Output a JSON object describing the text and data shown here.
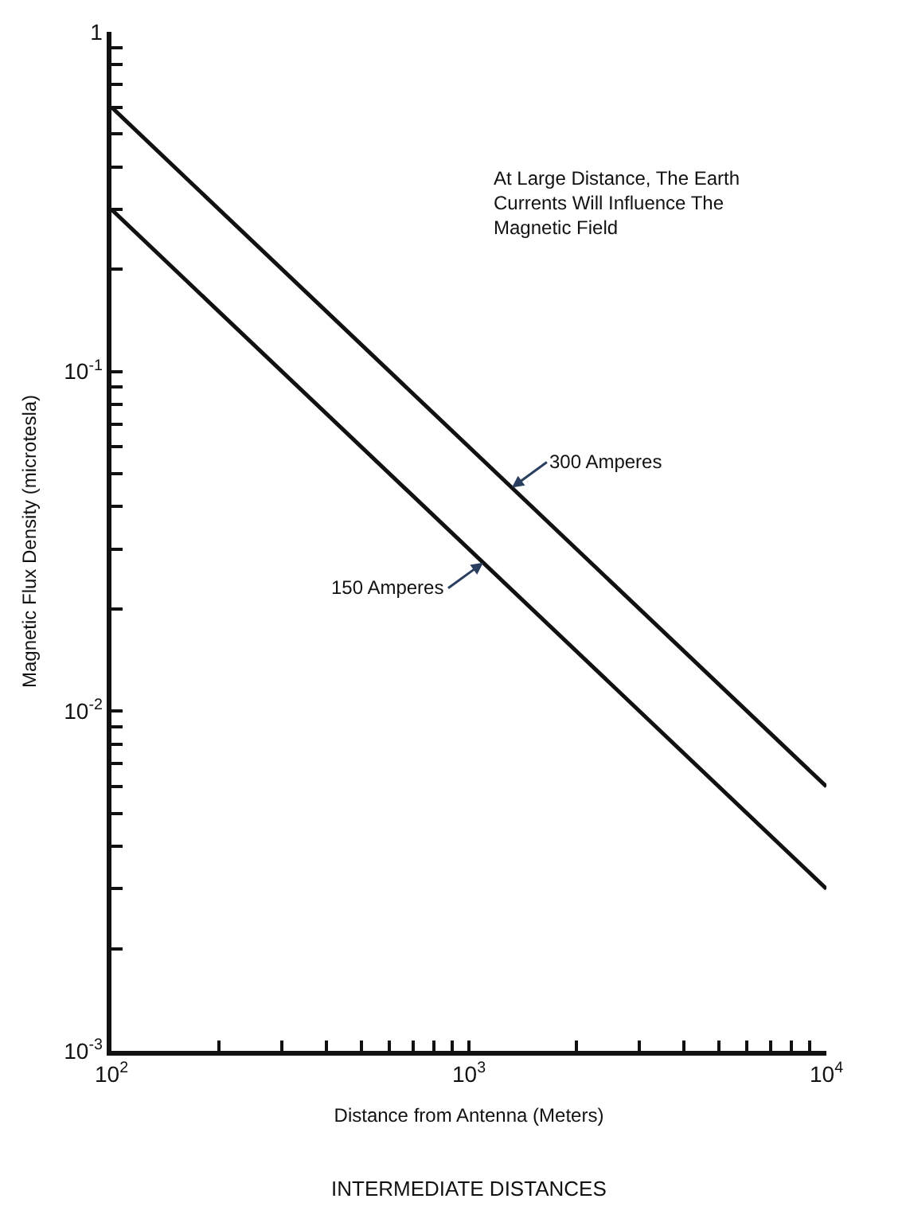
{
  "chart_data": {
    "type": "line",
    "xlabel": "Distance from Antenna (Meters)",
    "ylabel": "Magnetic Flux Density (microtesla)",
    "log": "xy",
    "legend": false,
    "marker": "none",
    "line_style": "solid",
    "xlim": [
      100,
      10000
    ],
    "ylim": [
      0.001,
      1
    ],
    "xticks": [
      {
        "value": 100,
        "label": "10$^{2}$"
      },
      {
        "value": 200,
        "label": null
      },
      {
        "value": 300,
        "label": null
      },
      {
        "value": 400,
        "label": null
      },
      {
        "value": 500,
        "label": null
      },
      {
        "value": 600,
        "label": null
      },
      {
        "value": 700,
        "label": null
      },
      {
        "value": 800,
        "label": null
      },
      {
        "value": 900,
        "label": null
      },
      {
        "value": 1000,
        "label": "10$^{3}$"
      },
      {
        "value": 2000,
        "label": null
      },
      {
        "value": 3000,
        "label": null
      },
      {
        "value": 4000,
        "label": null
      },
      {
        "value": 5000,
        "label": null
      },
      {
        "value": 6000,
        "label": null
      },
      {
        "value": 7000,
        "label": null
      },
      {
        "value": 8000,
        "label": null
      },
      {
        "value": 9000,
        "label": null
      },
      {
        "value": 10000,
        "label": "10$^{4}$"
      }
    ],
    "yticks": [
      {
        "value": 0.001,
        "label": "10$^{-3}$"
      },
      {
        "value": 0.002,
        "label": null
      },
      {
        "value": 0.003,
        "label": null
      },
      {
        "value": 0.004,
        "label": null
      },
      {
        "value": 0.005,
        "label": null
      },
      {
        "value": 0.006,
        "label": null
      },
      {
        "value": 0.007,
        "label": null
      },
      {
        "value": 0.008,
        "label": null
      },
      {
        "value": 0.009,
        "label": null
      },
      {
        "value": 0.01,
        "label": "10$^{-2}$"
      },
      {
        "value": 0.02,
        "label": null
      },
      {
        "value": 0.03,
        "label": null
      },
      {
        "value": 0.04,
        "label": null
      },
      {
        "value": 0.05,
        "label": null
      },
      {
        "value": 0.06,
        "label": null
      },
      {
        "value": 0.07,
        "label": null
      },
      {
        "value": 0.08,
        "label": null
      },
      {
        "value": 0.09,
        "label": null
      },
      {
        "value": 0.1,
        "label": "10$^{-1}$"
      },
      {
        "value": 0.2,
        "label": null
      },
      {
        "value": 0.3,
        "label": null
      },
      {
        "value": 0.4,
        "label": null
      },
      {
        "value": 0.5,
        "label": null
      },
      {
        "value": 0.6,
        "label": null
      },
      {
        "value": 0.7,
        "label": null
      },
      {
        "value": 0.8,
        "label": null
      },
      {
        "value": 0.9,
        "label": null
      },
      {
        "value": 1,
        "label": "1"
      }
    ],
    "x": [
      100,
      10000
    ],
    "series": [
      {
        "name": "300 Amperes",
        "color": "#111111",
        "values": [
          0.6,
          0.006
        ]
      },
      {
        "name": "150 Amperes",
        "color": "#111111",
        "values": [
          0.3,
          0.003
        ]
      }
    ],
    "annotations": [
      "At Large Distance, The Earth Currents Will Influence The Magnetic Field",
      "INTERMEDIATE DISTANCES"
    ]
  }
}
